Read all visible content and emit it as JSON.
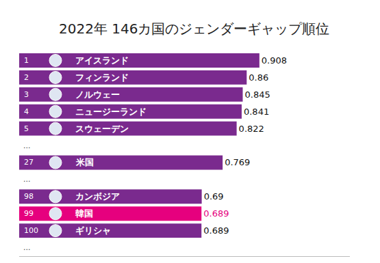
{
  "chart_data": {
    "type": "bar",
    "orientation": "horizontal",
    "title": "2022年 146カ国のジェンダーギャップ順位",
    "categories": [
      "アイスランド",
      "フィンランド",
      "ノルウェー",
      "ニュージーランド",
      "スウェーデン",
      "...",
      "米国",
      "...",
      "カンボジア",
      "韓国",
      "ギリシャ",
      "..."
    ],
    "ranks": [
      1,
      2,
      3,
      4,
      5,
      null,
      27,
      null,
      98,
      99,
      100,
      null
    ],
    "values": [
      0.908,
      0.86,
      0.845,
      0.841,
      0.822,
      null,
      0.769,
      null,
      0.69,
      0.689,
      0.689,
      null
    ],
    "colors": [
      "#7a2a8e",
      "#7a2a8e",
      "#7a2a8e",
      "#7a2a8e",
      "#7a2a8e",
      "#7a2a8e",
      "#7a2a8e",
      "#7a2a8e",
      "#7a2a8e",
      "#e6007e",
      "#7a2a8e",
      "#7a2a8e"
    ],
    "xlim": [
      0,
      1.25
    ],
    "xticks": [],
    "tick_labels": false,
    "data_labels": true,
    "grid": false
  }
}
